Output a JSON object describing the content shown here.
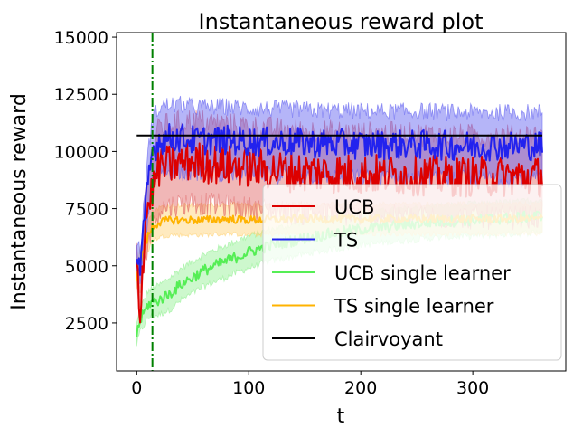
{
  "chart_data": {
    "type": "line",
    "title": "Instantaneous reward plot",
    "xlabel": "t",
    "ylabel": "Instantaneous reward",
    "xlim": [
      -18,
      383
    ],
    "ylim": [
      400,
      15200
    ],
    "xticks": [
      0,
      100,
      200,
      300
    ],
    "yticks": [
      2500,
      5000,
      7500,
      10000,
      12500,
      15000
    ],
    "grid": false,
    "legend_position": "lower-right",
    "vertical_line": {
      "x": 14,
      "style": "dash-dot",
      "color": "#008000"
    },
    "series": [
      {
        "name": "UCB",
        "color": "#dd0000",
        "band_color": "#e06060",
        "points": [
          [
            0,
            5200
          ],
          [
            3,
            3000
          ],
          [
            7,
            6400
          ],
          [
            10,
            7700
          ],
          [
            14,
            8300
          ],
          [
            20,
            9300
          ],
          [
            30,
            9400
          ],
          [
            40,
            9500
          ],
          [
            50,
            9600
          ],
          [
            60,
            9500
          ],
          [
            80,
            9400
          ],
          [
            100,
            9300
          ],
          [
            120,
            9200
          ],
          [
            140,
            9100
          ],
          [
            160,
            9100
          ],
          [
            180,
            9050
          ],
          [
            200,
            9000
          ],
          [
            220,
            9000
          ],
          [
            240,
            8950
          ],
          [
            260,
            8950
          ],
          [
            280,
            8900
          ],
          [
            300,
            8900
          ],
          [
            320,
            8900
          ],
          [
            340,
            8900
          ],
          [
            362,
            8900
          ]
        ],
        "band_width": [
          1500,
          1500,
          2500,
          3200,
          3400,
          3600,
          3600,
          3600,
          3600,
          3600,
          3600,
          3600,
          3600,
          3600,
          3600,
          3600,
          3600,
          3600,
          3600,
          3600,
          3600,
          3600,
          3600,
          3600,
          3600
        ],
        "noise": 900
      },
      {
        "name": "TS",
        "color": "#2222ee",
        "band_color": "#5b5bf0",
        "points": [
          [
            0,
            5600
          ],
          [
            3,
            4800
          ],
          [
            7,
            6900
          ],
          [
            10,
            8600
          ],
          [
            14,
            10000
          ],
          [
            20,
            10500
          ],
          [
            30,
            10600
          ],
          [
            40,
            10600
          ],
          [
            50,
            10500
          ],
          [
            60,
            10500
          ],
          [
            80,
            10500
          ],
          [
            100,
            10450
          ],
          [
            120,
            10400
          ],
          [
            140,
            10400
          ],
          [
            160,
            10350
          ],
          [
            180,
            10350
          ],
          [
            200,
            10300
          ],
          [
            220,
            10300
          ],
          [
            240,
            10300
          ],
          [
            260,
            10300
          ],
          [
            280,
            10250
          ],
          [
            300,
            10250
          ],
          [
            320,
            10250
          ],
          [
            340,
            10250
          ],
          [
            362,
            10250
          ]
        ],
        "band_width": [
          1200,
          1400,
          2200,
          2600,
          2800,
          2900,
          2900,
          2900,
          2900,
          2900,
          2900,
          2900,
          2900,
          2900,
          2900,
          2900,
          2900,
          2900,
          2900,
          2900,
          2900,
          2900,
          2900,
          2900,
          2900
        ],
        "noise": 650
      },
      {
        "name": "UCB single learner",
        "color": "#55ee55",
        "band_color": "#90f090",
        "points": [
          [
            0,
            2000
          ],
          [
            3,
            2600
          ],
          [
            7,
            3000
          ],
          [
            10,
            3300
          ],
          [
            14,
            3400
          ],
          [
            20,
            3500
          ],
          [
            30,
            3800
          ],
          [
            40,
            4200
          ],
          [
            50,
            4500
          ],
          [
            60,
            4800
          ],
          [
            70,
            5000
          ],
          [
            80,
            5200
          ],
          [
            90,
            5400
          ],
          [
            100,
            5600
          ],
          [
            120,
            5900
          ],
          [
            140,
            6100
          ],
          [
            160,
            6300
          ],
          [
            180,
            6450
          ],
          [
            200,
            6600
          ],
          [
            220,
            6700
          ],
          [
            240,
            6800
          ],
          [
            260,
            6900
          ],
          [
            280,
            6950
          ],
          [
            300,
            7000
          ],
          [
            320,
            7050
          ],
          [
            340,
            7100
          ],
          [
            362,
            7200
          ]
        ],
        "band_width": [
          900,
          1000,
          1100,
          1200,
          1200,
          1300,
          1400,
          1400,
          1400,
          1400,
          1400,
          1400,
          1400,
          1400,
          1400,
          1400,
          1400,
          1400,
          1400,
          1400,
          1400,
          1400,
          1400,
          1400,
          1400,
          1400,
          1400
        ],
        "noise": 250
      },
      {
        "name": "TS single learner",
        "color": "#ffb300",
        "band_color": "#ffd070",
        "points": [
          [
            0,
            4500
          ],
          [
            3,
            5200
          ],
          [
            7,
            5800
          ],
          [
            10,
            6300
          ],
          [
            14,
            6700
          ],
          [
            20,
            6900
          ],
          [
            30,
            7000
          ],
          [
            40,
            7000
          ],
          [
            60,
            7000
          ],
          [
            80,
            7050
          ],
          [
            100,
            7000
          ],
          [
            140,
            7050
          ],
          [
            180,
            7050
          ],
          [
            220,
            7050
          ],
          [
            260,
            7050
          ],
          [
            300,
            7050
          ],
          [
            340,
            7050
          ],
          [
            362,
            7050
          ]
        ],
        "band_width": [
          1000,
          1100,
          1200,
          1300,
          1300,
          1300,
          1300,
          1300,
          1300,
          1300,
          1300,
          1300,
          1300,
          1300,
          1300,
          1300,
          1300,
          1300
        ],
        "noise": 180
      },
      {
        "name": "Clairvoyant",
        "color": "#000000",
        "band_color": null,
        "points": [
          [
            0,
            10700
          ],
          [
            362,
            10700
          ]
        ],
        "band_width": null,
        "noise": 0
      }
    ]
  }
}
